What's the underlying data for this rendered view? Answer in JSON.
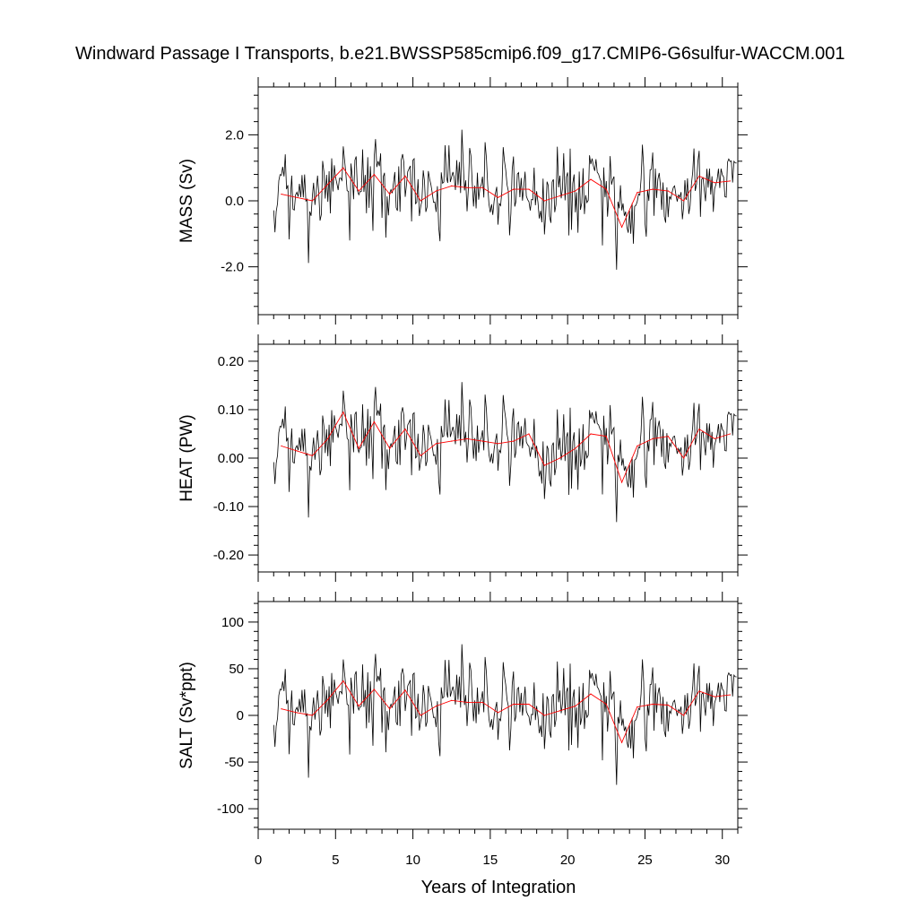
{
  "chart_data": {
    "type": "line",
    "title": "Windward Passage I Transports, b.e21.BWSSP585cmip6.f09_g17.CMIP6-G6sulfur-WACCM.001",
    "xlabel": "Years of Integration",
    "xlim": [
      0,
      31
    ],
    "xticks": [
      0,
      5,
      10,
      15,
      20,
      25,
      30
    ],
    "xtick_labels": [
      "0",
      "5",
      "10",
      "15",
      "20",
      "25",
      "30"
    ],
    "grid": false,
    "colors": {
      "monthly": "#000000",
      "annual": "#ff0000"
    },
    "panels": [
      {
        "ylabel": "MASS (Sv)",
        "ylim": [
          -3.45,
          3.45
        ],
        "yticks": [
          2.0,
          0.0,
          -2.0
        ],
        "ytick_labels": [
          "2.0",
          "0.0",
          "-2.0"
        ],
        "annual": {
          "x": [
            1.5,
            2.5,
            3.5,
            4.5,
            5.5,
            6.5,
            7.5,
            8.5,
            9.5,
            10.5,
            11.5,
            12.5,
            13.5,
            14.5,
            15.5,
            16.5,
            17.5,
            18.5,
            19.5,
            20.5,
            21.5,
            22.5,
            23.5,
            24.5,
            25.5,
            26.5,
            27.5,
            28.5,
            29.5,
            30.5
          ],
          "y": [
            0.2,
            0.1,
            0.0,
            0.5,
            1.0,
            0.3,
            0.8,
            0.2,
            0.75,
            0.0,
            0.3,
            0.45,
            0.4,
            0.4,
            0.1,
            0.35,
            0.35,
            0.0,
            0.15,
            0.3,
            0.65,
            0.35,
            -0.8,
            0.25,
            0.35,
            0.3,
            0.0,
            0.75,
            0.55,
            0.6
          ]
        }
      },
      {
        "ylabel": "HEAT (PW)",
        "ylim": [
          -0.235,
          0.235
        ],
        "yticks": [
          0.2,
          0.1,
          0.0,
          -0.1,
          -0.2
        ],
        "ytick_labels": [
          "0.20",
          "0.10",
          "0.00",
          "-0.10",
          "-0.20"
        ],
        "annual": {
          "x": [
            1.5,
            2.5,
            3.5,
            4.5,
            5.5,
            6.5,
            7.5,
            8.5,
            9.5,
            10.5,
            11.5,
            12.5,
            13.5,
            14.5,
            15.5,
            16.5,
            17.5,
            18.5,
            19.5,
            20.5,
            21.5,
            22.5,
            23.5,
            24.5,
            25.5,
            26.5,
            27.5,
            28.5,
            29.5,
            30.5
          ],
          "y": [
            0.025,
            0.015,
            0.005,
            0.04,
            0.095,
            0.02,
            0.075,
            0.02,
            0.06,
            0.005,
            0.03,
            0.035,
            0.04,
            0.035,
            0.03,
            0.035,
            0.05,
            -0.015,
            0.0,
            0.02,
            0.05,
            0.045,
            -0.05,
            0.025,
            0.04,
            0.045,
            0.0,
            0.06,
            0.04,
            0.05
          ]
        }
      },
      {
        "ylabel": "SALT (Sv*ppt)",
        "ylim": [
          -122,
          122
        ],
        "yticks": [
          100,
          50,
          0,
          -50,
          -100
        ],
        "ytick_labels": [
          "100",
          "50",
          "0",
          "-50",
          "-100"
        ],
        "annual": {
          "x": [
            1.5,
            2.5,
            3.5,
            4.5,
            5.5,
            6.5,
            7.5,
            8.5,
            9.5,
            10.5,
            11.5,
            12.5,
            13.5,
            14.5,
            15.5,
            16.5,
            17.5,
            18.5,
            19.5,
            20.5,
            21.5,
            22.5,
            23.5,
            24.5,
            25.5,
            26.5,
            27.5,
            28.5,
            29.5,
            30.5
          ],
          "y": [
            7,
            3,
            0,
            17,
            37,
            10,
            28,
            7,
            27,
            0,
            10,
            16,
            14,
            14,
            3,
            12,
            12,
            0,
            5,
            10,
            23,
            12,
            -29,
            9,
            12,
            11,
            0,
            26,
            20,
            22
          ]
        }
      }
    ]
  }
}
